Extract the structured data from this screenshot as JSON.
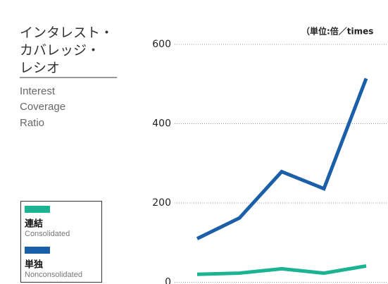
{
  "chart_data": {
    "type": "line",
    "title": [
      "インタレスト・",
      "カバレッジ・",
      "レシオ"
    ],
    "title_en": [
      "Interest",
      "Coverage",
      "Ratio"
    ],
    "unit": "（単位:倍／times",
    "categories": [
      null,
      null,
      null,
      null,
      null
    ],
    "series": [
      {
        "name": "連結",
        "name_en": "Consolidated",
        "color": "#1bb392",
        "values": [
          20,
          23,
          34,
          23,
          41
        ]
      },
      {
        "name": "単独",
        "name_en": "Nonconsolidated",
        "color": "#1a5fa8",
        "values": [
          110,
          162,
          279,
          236,
          514
        ]
      }
    ],
    "ylim": [
      0,
      600
    ],
    "yticks": [
      0,
      200,
      400,
      600
    ],
    "grid": true
  }
}
